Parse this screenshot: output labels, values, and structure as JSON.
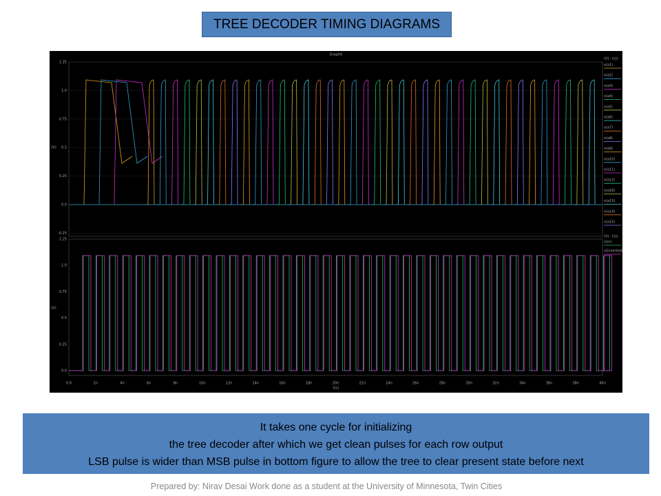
{
  "title": "TREE DECODER TIMING DIAGRAMS",
  "graph": {
    "title": "Graph0",
    "top_panel": {
      "y_axis_label": "(V)",
      "yticks": [
        "1.25",
        "1.0",
        "0.75",
        "0.5",
        "0.25",
        "0.0",
        "-0.25"
      ],
      "legend_header": "(V) : t(s)",
      "legend": [
        "v(a1)",
        "v(a2)",
        "v(a3)",
        "v(a4)",
        "v(a5)",
        "v(a6)",
        "v(a7)",
        "v(a8)",
        "v(a9)",
        "v(a10)",
        "v(a11)",
        "v(a12)",
        "v(a16)",
        "v(a13)",
        "v(a14)",
        "v(a15)"
      ]
    },
    "bottom_panel": {
      "y_axis_label": "(V)",
      "yticks": [
        "1.25",
        "1.0",
        "0.75",
        "0.5",
        "0.25",
        "0.0"
      ],
      "legend_header": "(V) : t(s)",
      "legend": [
        "v(in)",
        "v(inverted)"
      ]
    },
    "xticks": [
      "0.0",
      "2n",
      "4n",
      "6n",
      "8n",
      "10n",
      "12n",
      "14n",
      "16n",
      "18n",
      "20n",
      "22n",
      "24n",
      "26n",
      "28n",
      "30n",
      "32n",
      "34n",
      "36n",
      "38n",
      "40n"
    ],
    "x_axis_label": "t(s)"
  },
  "note": {
    "lines": [
      "It takes one cycle for initializing",
      "the tree decoder after which we get clean pulses for each row output",
      "LSB pulse is wider than MSB pulse in bottom figure to allow the tree to clear present state before next"
    ]
  },
  "footer": "Prepared by: Nirav Desai Work done as a student at the University of Minnesota, Twin Cities"
}
